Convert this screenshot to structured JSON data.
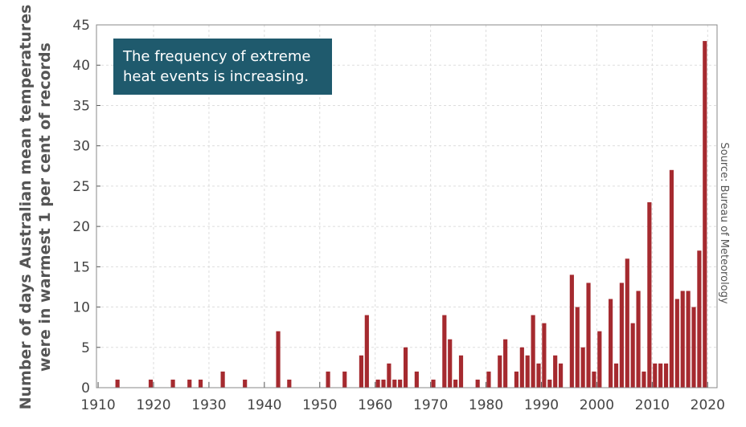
{
  "chart_data": {
    "type": "bar",
    "title": "",
    "annotation": "The frequency of extreme heat events is increasing.",
    "source": "Source: Bureau of Meteorology",
    "xlabel": "",
    "ylabel": "Number of days Australian mean temperatures were in warmest 1 per cent of records",
    "ylabel_lines": [
      "Number of days Australian mean temperatures",
      "were in warmest 1 per cent of records"
    ],
    "xlim": [
      1910,
      2020
    ],
    "ylim": [
      0,
      45
    ],
    "xticks": [
      1910,
      1920,
      1930,
      1940,
      1950,
      1960,
      1970,
      1980,
      1990,
      2000,
      2010,
      2020
    ],
    "yticks": [
      0,
      5,
      10,
      15,
      20,
      25,
      30,
      35,
      40,
      45
    ],
    "grid": true,
    "bar_color": "#a52a2f",
    "annotation_color": "#1f5a6d",
    "x": [
      1913,
      1919,
      1923,
      1926,
      1928,
      1932,
      1936,
      1942,
      1944,
      1951,
      1954,
      1957,
      1958,
      1960,
      1961,
      1962,
      1963,
      1964,
      1965,
      1967,
      1970,
      1972,
      1973,
      1974,
      1975,
      1978,
      1980,
      1982,
      1983,
      1985,
      1986,
      1987,
      1988,
      1989,
      1990,
      1991,
      1992,
      1993,
      1995,
      1996,
      1997,
      1998,
      1999,
      2000,
      2002,
      2003,
      2004,
      2005,
      2006,
      2007,
      2008,
      2009,
      2010,
      2011,
      2012,
      2013,
      2014,
      2015,
      2016,
      2017,
      2018,
      2019
    ],
    "values": [
      1,
      1,
      1,
      1,
      1,
      2,
      1,
      7,
      1,
      2,
      2,
      4,
      9,
      1,
      1,
      3,
      1,
      1,
      5,
      2,
      1,
      9,
      6,
      1,
      4,
      1,
      2,
      4,
      6,
      2,
      5,
      4,
      9,
      3,
      8,
      1,
      4,
      3,
      14,
      10,
      5,
      13,
      2,
      7,
      11,
      3,
      13,
      16,
      8,
      12,
      2,
      23,
      3,
      3,
      3,
      27,
      11,
      12,
      12,
      10,
      17,
      43
    ]
  }
}
